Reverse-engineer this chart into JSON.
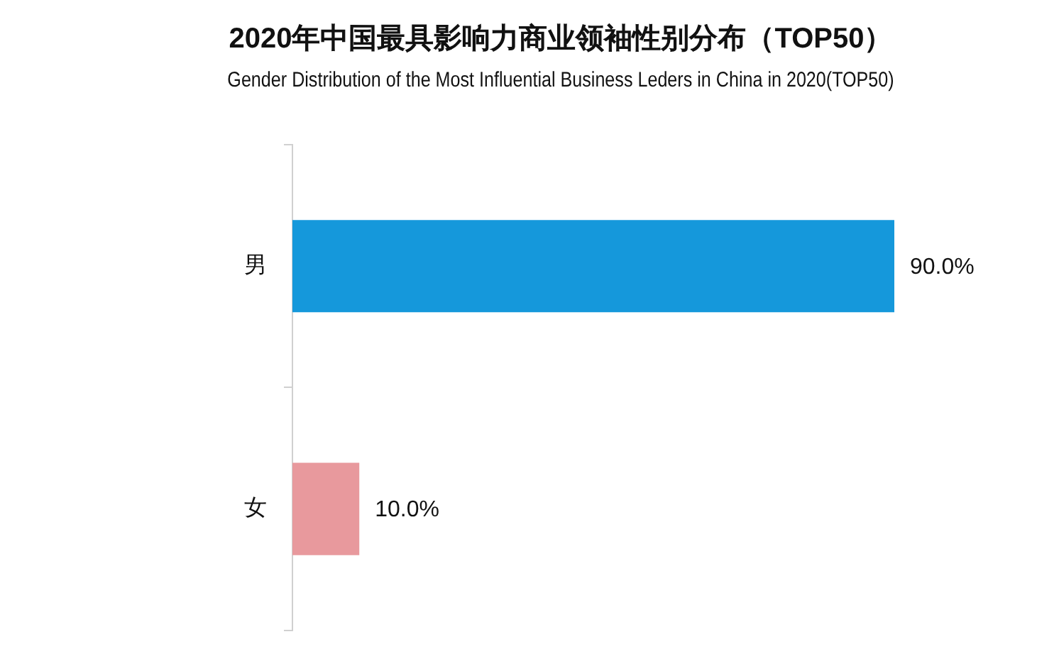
{
  "chart_data": {
    "type": "bar",
    "orientation": "horizontal",
    "title": "2020年中国最具影响力商业领袖性别分布（TOP50）",
    "subtitle": "Gender Distribution of the Most Influential Business Leders in China in 2020(TOP50)",
    "categories": [
      "男",
      "女"
    ],
    "values": [
      90.0,
      10.0
    ],
    "colors": [
      "#1598db",
      "#e8999d"
    ],
    "value_labels": [
      "90.0%",
      "10.0%"
    ],
    "tick_labels": "y",
    "legend": false
  }
}
